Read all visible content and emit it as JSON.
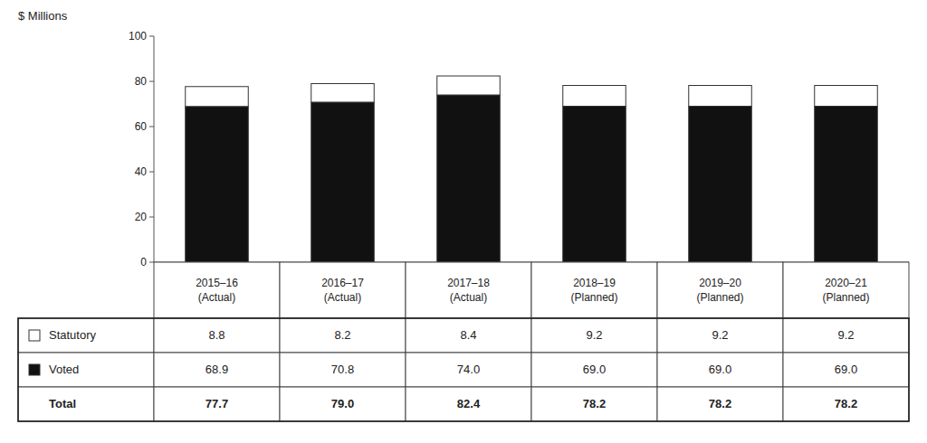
{
  "chart_data": {
    "type": "bar",
    "stacked": true,
    "y_label": "$ Millions",
    "categories": [
      "2015–16\n(Actual)",
      "2016–17\n(Actual)",
      "2017–18\n(Actual)",
      "2018–19\n(Planned)",
      "2019–20\n(Planned)",
      "2020–21\n(Planned)"
    ],
    "series": [
      {
        "name": "Voted",
        "color": "#111111",
        "values": [
          68.9,
          70.8,
          74.0,
          69.0,
          69.0,
          69.0
        ],
        "value_labels": [
          "68.9",
          "70.8",
          "74.0",
          "69.0",
          "69.0",
          "69.0"
        ]
      },
      {
        "name": "Statutory",
        "color": "#ffffff",
        "values": [
          8.8,
          8.2,
          8.4,
          9.2,
          9.2,
          9.2
        ],
        "value_labels": [
          "8.8",
          "8.2",
          "8.4",
          "9.2",
          "9.2",
          "9.2"
        ]
      }
    ],
    "totals": {
      "name": "Total",
      "values": [
        77.7,
        79.0,
        82.4,
        78.2,
        78.2,
        78.2
      ],
      "value_labels": [
        "77.7",
        "79.0",
        "82.4",
        "78.2",
        "78.2",
        "78.2"
      ]
    },
    "ylim": [
      0,
      100
    ],
    "yticks": [
      0,
      20,
      40,
      60,
      80,
      100
    ],
    "grid": false,
    "data_labels": true
  }
}
